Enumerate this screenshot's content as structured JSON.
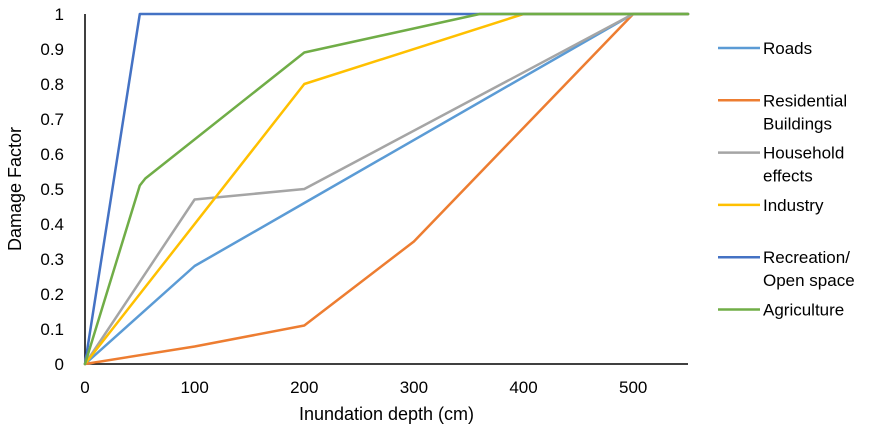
{
  "chart_data": {
    "type": "line",
    "title": "",
    "xlabel": "Inundation depth (cm)",
    "ylabel": "Damage Factor",
    "xlim": [
      0,
      550
    ],
    "ylim": [
      0,
      1
    ],
    "xticks": [
      0,
      100,
      200,
      300,
      400,
      500
    ],
    "yticks": [
      0,
      0.1,
      0.2,
      0.3,
      0.4,
      0.5,
      0.6,
      0.7,
      0.8,
      0.9,
      1
    ],
    "ytick_labels": [
      "0",
      "0.1",
      "0.2",
      "0.3",
      "0.4",
      "0.5",
      "0.6",
      "0.7",
      "0.8",
      "0.9",
      "1"
    ],
    "grid": false,
    "legend_position": "right",
    "series": [
      {
        "name": "Roads",
        "legend_lines": [
          "Roads"
        ],
        "color": "#5B9BD5",
        "x": [
          0,
          100,
          200,
          500,
          550
        ],
        "y": [
          0,
          0.28,
          0.46,
          1,
          1
        ]
      },
      {
        "name": "Residential Buildings",
        "legend_lines": [
          "Residential",
          "Buildings"
        ],
        "color": "#ED7D31",
        "x": [
          0,
          100,
          200,
          300,
          500,
          550
        ],
        "y": [
          0,
          0.05,
          0.11,
          0.35,
          1,
          1
        ]
      },
      {
        "name": "Household effects",
        "legend_lines": [
          "Household",
          "effects"
        ],
        "color": "#A5A5A5",
        "x": [
          0,
          100,
          200,
          500,
          550
        ],
        "y": [
          0,
          0.47,
          0.5,
          1,
          1
        ]
      },
      {
        "name": "Industry",
        "legend_lines": [
          "Industry"
        ],
        "color": "#FFC000",
        "x": [
          0,
          200,
          400,
          550
        ],
        "y": [
          0,
          0.8,
          1,
          1
        ]
      },
      {
        "name": "Recreation/ Open space",
        "legend_lines": [
          "Recreation/",
          "Open space"
        ],
        "color": "#4472C4",
        "x": [
          0,
          50,
          550
        ],
        "y": [
          0,
          1,
          1
        ]
      },
      {
        "name": "Agriculture",
        "legend_lines": [
          "Agriculture"
        ],
        "color": "#70AD47",
        "x": [
          0,
          50,
          55,
          200,
          360,
          550
        ],
        "y": [
          0,
          0.51,
          0.53,
          0.89,
          1,
          1
        ]
      }
    ]
  }
}
